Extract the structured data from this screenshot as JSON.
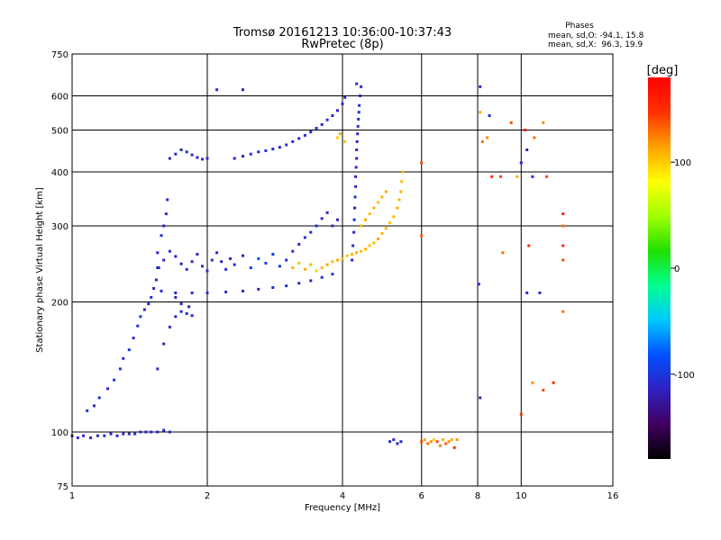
{
  "chart_data": {
    "type": "scatter",
    "title": "Tromsø 20161213 10:36:00-10:37:43",
    "subtitle": "RwPretec (8p)",
    "xlabel": "Frequency [MHz]",
    "ylabel": "Stationary phase Virtual Height [km]",
    "x_scale": "log",
    "y_scale": "log",
    "xlim": [
      1,
      16
    ],
    "ylim": [
      75,
      750
    ],
    "x_ticks": [
      1,
      2,
      4,
      6,
      8,
      10,
      16
    ],
    "y_ticks": [
      75,
      100,
      200,
      300,
      400,
      500,
      600,
      750
    ],
    "grid": true,
    "info": {
      "heading": "Phases",
      "line1": "mean, sd,O: -94.1, 15.8",
      "line2": "mean, sd,X:  96.3, 19.9"
    },
    "colorbar": {
      "label": "[deg]",
      "range": [
        -180,
        180
      ],
      "ticks": [
        100,
        0,
        -100
      ],
      "colors": [
        "#000000",
        "#400060",
        "#3020c0",
        "#0050ff",
        "#00c8ff",
        "#00ff90",
        "#20e000",
        "#a0ff00",
        "#ffff00",
        "#ffa000",
        "#ff3000",
        "#ff0000"
      ]
    },
    "series": [
      {
        "points": [
          [
            1.0,
            98,
            -112
          ],
          [
            1.03,
            97,
            -110
          ],
          [
            1.06,
            98,
            -115
          ],
          [
            1.1,
            97,
            -108
          ],
          [
            1.14,
            98,
            -112
          ],
          [
            1.18,
            98,
            -105
          ],
          [
            1.22,
            99,
            -110
          ],
          [
            1.26,
            98,
            -114
          ],
          [
            1.3,
            99,
            -108
          ],
          [
            1.34,
            99,
            -112
          ],
          [
            1.38,
            99,
            -106
          ],
          [
            1.42,
            100,
            -110
          ],
          [
            1.46,
            100,
            -113
          ],
          [
            1.5,
            100,
            -108
          ],
          [
            1.55,
            100,
            -111
          ],
          [
            1.6,
            101,
            -109
          ],
          [
            1.65,
            100,
            -112
          ],
          [
            1.08,
            112,
            -104
          ],
          [
            1.12,
            115,
            -106
          ],
          [
            1.15,
            120,
            -102
          ],
          [
            1.2,
            126,
            -108
          ],
          [
            1.24,
            132,
            -104
          ],
          [
            1.28,
            140,
            -100
          ],
          [
            1.3,
            148,
            -106
          ],
          [
            1.34,
            155,
            -102
          ],
          [
            1.37,
            165,
            -108
          ],
          [
            1.4,
            176,
            -104
          ],
          [
            1.42,
            185,
            -100
          ],
          [
            1.45,
            192,
            -110
          ],
          [
            1.48,
            198,
            -106
          ],
          [
            1.5,
            205,
            -102
          ],
          [
            1.52,
            215,
            -108
          ],
          [
            1.54,
            225,
            -110
          ],
          [
            1.56,
            240,
            -104
          ],
          [
            1.55,
            260,
            -112
          ],
          [
            1.58,
            285,
            -104
          ],
          [
            1.6,
            300,
            -110
          ],
          [
            1.62,
            320,
            -104
          ],
          [
            1.63,
            345,
            -108
          ],
          [
            1.55,
            140,
            -110
          ],
          [
            1.6,
            160,
            -114
          ],
          [
            1.65,
            175,
            -108
          ],
          [
            1.7,
            185,
            -112
          ],
          [
            1.75,
            190,
            -105
          ],
          [
            1.8,
            188,
            -110
          ],
          [
            1.85,
            186,
            -108
          ],
          [
            1.7,
            205,
            -114
          ],
          [
            1.75,
            198,
            -110
          ],
          [
            1.82,
            195,
            -116
          ],
          [
            1.58,
            212,
            -104
          ],
          [
            1.7,
            210,
            -108
          ],
          [
            1.85,
            210,
            -110
          ],
          [
            2.0,
            210,
            -106
          ],
          [
            2.2,
            211,
            -108
          ],
          [
            2.4,
            212,
            -104
          ],
          [
            2.6,
            214,
            -110
          ],
          [
            2.8,
            216,
            -106
          ],
          [
            3.0,
            218,
            -108
          ],
          [
            3.2,
            221,
            -104
          ],
          [
            3.4,
            224,
            -108
          ],
          [
            3.6,
            228,
            -106
          ],
          [
            3.8,
            232,
            -104
          ],
          [
            1.55,
            240,
            -108
          ],
          [
            1.6,
            250,
            -112
          ],
          [
            1.65,
            262,
            -106
          ],
          [
            1.7,
            255,
            -110
          ],
          [
            1.75,
            245,
            -114
          ],
          [
            1.8,
            238,
            -104
          ],
          [
            1.85,
            248,
            -108
          ],
          [
            1.9,
            258,
            -112
          ],
          [
            1.95,
            242,
            -106
          ],
          [
            2.0,
            236,
            -110
          ],
          [
            2.05,
            250,
            -104
          ],
          [
            2.1,
            260,
            -108
          ],
          [
            2.15,
            248,
            -112
          ],
          [
            2.2,
            238,
            -106
          ],
          [
            2.25,
            252,
            -110
          ],
          [
            2.3,
            244,
            -104
          ],
          [
            2.4,
            256,
            -108
          ],
          [
            2.5,
            240,
            -92
          ],
          [
            2.6,
            252,
            -85
          ],
          [
            2.7,
            246,
            -90
          ],
          [
            2.8,
            258,
            -95
          ],
          [
            2.9,
            242,
            -100
          ],
          [
            3.0,
            250,
            -104
          ],
          [
            3.1,
            262,
            -108
          ],
          [
            3.2,
            272,
            -112
          ],
          [
            3.3,
            282,
            -106
          ],
          [
            3.4,
            290,
            -110
          ],
          [
            3.5,
            300,
            -104
          ],
          [
            3.6,
            312,
            -108
          ],
          [
            3.7,
            322,
            -112
          ],
          [
            3.8,
            300,
            -106
          ],
          [
            3.9,
            310,
            -110
          ],
          [
            1.65,
            430,
            -110
          ],
          [
            1.7,
            440,
            -108
          ],
          [
            1.75,
            450,
            -112
          ],
          [
            1.8,
            445,
            -106
          ],
          [
            1.85,
            438,
            -110
          ],
          [
            1.9,
            432,
            -114
          ],
          [
            1.95,
            428,
            -108
          ],
          [
            2.0,
            430,
            -112
          ],
          [
            2.3,
            430,
            -108
          ],
          [
            2.4,
            435,
            -112
          ],
          [
            2.5,
            440,
            -106
          ],
          [
            2.6,
            445,
            -110
          ],
          [
            2.7,
            448,
            -104
          ],
          [
            2.8,
            452,
            -108
          ],
          [
            2.9,
            456,
            -112
          ],
          [
            3.0,
            462,
            -106
          ],
          [
            3.1,
            470,
            -110
          ],
          [
            3.2,
            478,
            -104
          ],
          [
            3.3,
            486,
            -108
          ],
          [
            3.4,
            495,
            -112
          ],
          [
            3.5,
            505,
            -106
          ],
          [
            3.6,
            515,
            -110
          ],
          [
            3.7,
            528,
            -104
          ],
          [
            3.8,
            540,
            -108
          ],
          [
            3.9,
            555,
            -112
          ],
          [
            4.0,
            575,
            -106
          ],
          [
            4.05,
            595,
            -110
          ],
          [
            2.1,
            620,
            -108
          ],
          [
            2.4,
            620,
            -112
          ],
          [
            4.2,
            250,
            -108
          ],
          [
            4.22,
            270,
            -104
          ],
          [
            4.24,
            290,
            -110
          ],
          [
            4.25,
            310,
            -106
          ],
          [
            4.26,
            330,
            -112
          ],
          [
            4.27,
            350,
            -104
          ],
          [
            4.28,
            370,
            -108
          ],
          [
            4.28,
            390,
            -112
          ],
          [
            4.29,
            410,
            -106
          ],
          [
            4.3,
            430,
            -110
          ],
          [
            4.3,
            450,
            -104
          ],
          [
            4.31,
            470,
            -108
          ],
          [
            4.32,
            490,
            -112
          ],
          [
            4.33,
            510,
            -106
          ],
          [
            4.34,
            530,
            -110
          ],
          [
            4.35,
            550,
            -104
          ],
          [
            4.36,
            570,
            -108
          ],
          [
            4.38,
            600,
            -112
          ],
          [
            4.4,
            630,
            -106
          ],
          [
            4.3,
            640,
            -110
          ],
          [
            5.1,
            95,
            -108
          ],
          [
            5.2,
            96,
            -104
          ],
          [
            5.3,
            94,
            -110
          ],
          [
            5.4,
            95,
            -106
          ],
          [
            8.1,
            630,
            -110
          ],
          [
            8.1,
            120,
            -112
          ],
          [
            8.05,
            220,
            -108
          ],
          [
            8.5,
            540,
            -104
          ],
          [
            10.0,
            420,
            -110
          ],
          [
            10.3,
            210,
            -108
          ],
          [
            10.3,
            450,
            -112
          ],
          [
            10.6,
            390,
            -106
          ],
          [
            11.0,
            210,
            -104
          ]
        ]
      },
      {
        "points": [
          [
            3.1,
            240,
            110
          ],
          [
            3.2,
            246,
            104
          ],
          [
            3.3,
            238,
            112
          ],
          [
            3.4,
            244,
            108
          ],
          [
            3.5,
            236,
            100
          ],
          [
            3.6,
            240,
            106
          ],
          [
            3.7,
            244,
            112
          ],
          [
            3.8,
            248,
            104
          ],
          [
            3.9,
            250,
            110
          ],
          [
            4.0,
            252,
            106
          ],
          [
            4.1,
            256,
            102
          ],
          [
            4.2,
            258,
            108
          ],
          [
            4.3,
            260,
            112
          ],
          [
            4.4,
            262,
            106
          ],
          [
            4.5,
            265,
            110
          ],
          [
            4.6,
            270,
            104
          ],
          [
            4.7,
            274,
            108
          ],
          [
            4.8,
            280,
            112
          ],
          [
            4.9,
            288,
            106
          ],
          [
            5.0,
            296,
            110
          ],
          [
            5.1,
            305,
            104
          ],
          [
            5.2,
            315,
            108
          ],
          [
            5.3,
            330,
            112
          ],
          [
            5.35,
            345,
            106
          ],
          [
            5.4,
            360,
            110
          ],
          [
            5.42,
            380,
            104
          ],
          [
            5.45,
            400,
            108
          ],
          [
            4.4,
            300,
            108
          ],
          [
            4.5,
            310,
            112
          ],
          [
            4.6,
            320,
            106
          ],
          [
            4.7,
            330,
            110
          ],
          [
            4.8,
            340,
            104
          ],
          [
            4.9,
            350,
            108
          ],
          [
            5.0,
            360,
            112
          ],
          [
            3.9,
            480,
            100
          ],
          [
            3.95,
            490,
            110
          ],
          [
            4.05,
            470,
            106
          ],
          [
            6.0,
            95,
            140
          ],
          [
            6.1,
            96,
            110
          ],
          [
            6.2,
            94,
            130
          ],
          [
            6.3,
            95,
            120
          ],
          [
            6.4,
            96,
            100
          ],
          [
            6.5,
            95,
            140
          ],
          [
            6.6,
            93,
            125
          ],
          [
            6.7,
            96,
            110
          ],
          [
            6.8,
            94,
            135
          ],
          [
            6.9,
            95,
            120
          ],
          [
            7.0,
            96,
            110
          ],
          [
            7.1,
            92,
            150
          ],
          [
            7.2,
            96,
            115
          ],
          [
            6.0,
            420,
            140
          ],
          [
            6.0,
            285,
            135
          ],
          [
            8.1,
            550,
            110
          ],
          [
            8.2,
            470,
            130
          ],
          [
            8.6,
            390,
            150
          ],
          [
            8.4,
            480,
            120
          ],
          [
            9.0,
            390,
            140
          ],
          [
            9.1,
            260,
            130
          ],
          [
            9.5,
            520,
            140
          ],
          [
            9.8,
            390,
            110
          ],
          [
            10.2,
            500,
            160
          ],
          [
            10.4,
            270,
            150
          ],
          [
            10.7,
            480,
            130
          ],
          [
            11.2,
            520,
            120
          ],
          [
            11.4,
            390,
            140
          ],
          [
            12.4,
            270,
            150
          ],
          [
            12.4,
            300,
            130
          ],
          [
            12.4,
            320,
            160
          ],
          [
            12.4,
            250,
            140
          ],
          [
            12.4,
            190,
            130
          ],
          [
            11.8,
            130,
            150
          ],
          [
            11.2,
            125,
            140
          ],
          [
            10.6,
            130,
            120
          ],
          [
            10.0,
            110,
            150
          ]
        ]
      }
    ]
  }
}
